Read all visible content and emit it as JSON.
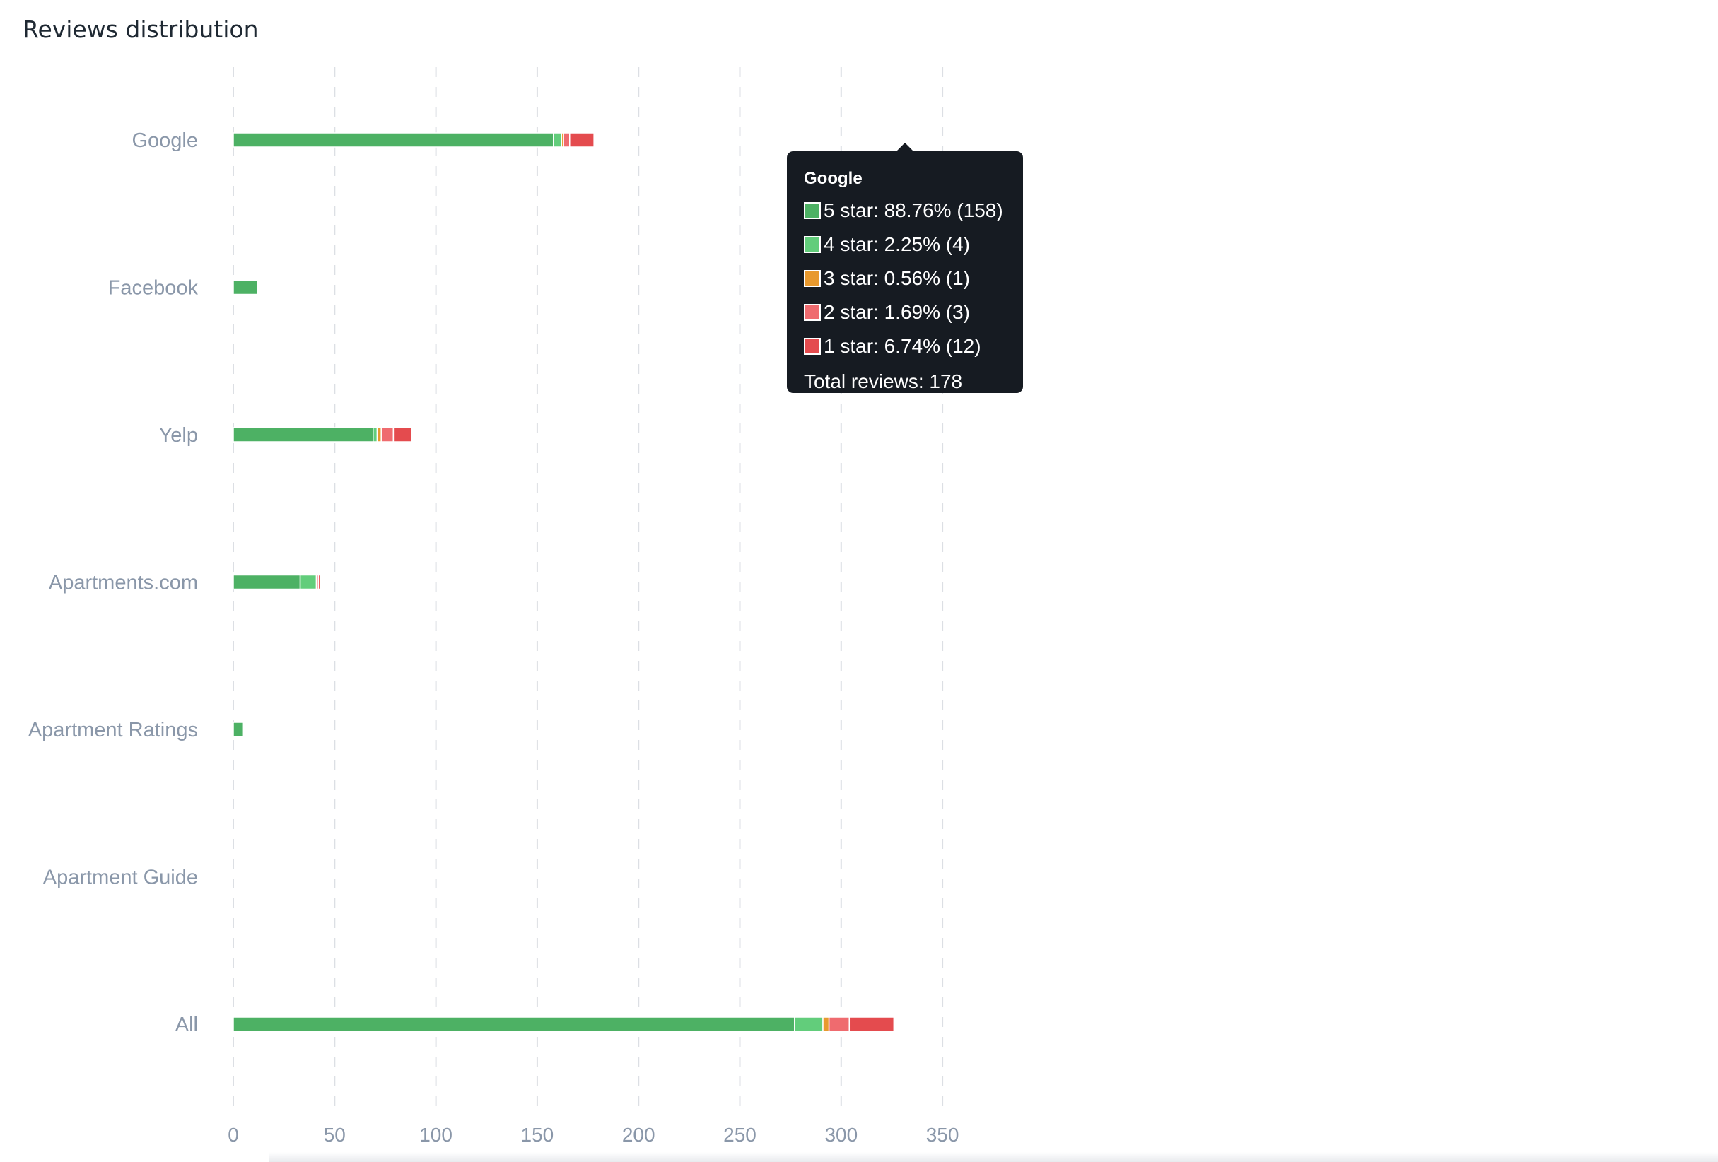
{
  "title": "Reviews distribution",
  "colors": {
    "5 star": "#4db164",
    "4 star": "#62cd7b",
    "3 star": "#e8992e",
    "2 star": "#ef6b6f",
    "1 star": "#e44b4e",
    "grid": "#dcdfe4",
    "axis_text": "#8a97a9",
    "tooltip_bg": "#161b22"
  },
  "chart_data": {
    "type": "bar",
    "orientation": "horizontal",
    "stacked": true,
    "title": "Reviews distribution",
    "categories": [
      "Google",
      "Facebook",
      "Yelp",
      "Apartments.com",
      "Apartment Ratings",
      "Apartment Guide",
      "All"
    ],
    "series": [
      {
        "name": "5 star",
        "values": [
          158,
          12,
          69,
          33,
          5,
          0,
          277
        ]
      },
      {
        "name": "4 star",
        "values": [
          4,
          0,
          2,
          8,
          0,
          0,
          14
        ]
      },
      {
        "name": "3 star",
        "values": [
          1,
          0,
          2,
          0,
          0,
          0,
          3
        ]
      },
      {
        "name": "2 star",
        "values": [
          3,
          0,
          6,
          1,
          0,
          0,
          10
        ]
      },
      {
        "name": "1 star",
        "values": [
          12,
          0,
          9,
          1,
          0,
          0,
          22
        ]
      }
    ],
    "xlim": [
      0,
      350
    ],
    "xticks": [
      0,
      50,
      100,
      150,
      200,
      250,
      300,
      350
    ],
    "grid": "vertical dashed",
    "legend": "none"
  },
  "tooltip": {
    "title": "Google",
    "rows": [
      {
        "label": "5 star: 88.76% (158)",
        "color": "#4db164"
      },
      {
        "label": "4 star: 2.25% (4)",
        "color": "#62cd7b"
      },
      {
        "label": "3 star: 0.56% (1)",
        "color": "#e8992e"
      },
      {
        "label": "2 star: 1.69% (3)",
        "color": "#ef6b6f"
      },
      {
        "label": "1 star: 6.74% (12)",
        "color": "#e44b4e"
      }
    ],
    "total": "Total reviews: 178"
  }
}
